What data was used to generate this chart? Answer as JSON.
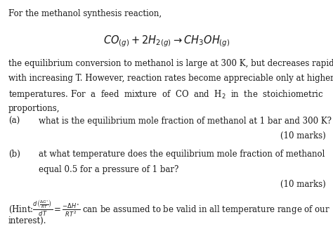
{
  "bg_color": "#ffffff",
  "text_color": "#1a1a1a",
  "fs": 8.5,
  "fs_eq": 10.5,
  "line1": "For the methanol synthesis reaction,",
  "eq": "$\\mathit{CO}_{(g)} + 2\\mathit{H}_{2(g)} \\rightarrow \\mathit{CH_3OH}_{(g)}$",
  "body": [
    "the equilibrium conversion to methanol is large at 300 K, but decreases rapidly",
    "with increasing T. However, reaction rates become appreciable only at higher",
    "temperatures. For  a  feed  mixture  of  CO  and  H$_2$  in  the  stoichiometric",
    "proportions,"
  ],
  "part_a_label": "(a)",
  "part_a_text": "what is the equilibrium mole fraction of methanol at 1 bar and 300 K?",
  "marks": "(10 marks)",
  "part_b_label": "(b)",
  "part_b_line1": "at what temperature does the equilibrium mole fraction of methanol",
  "part_b_line2": "equal 0.5 for a pressure of 1 bar?",
  "hint_prefix": "(Hint:",
  "hint_math": "$\\frac{d\\left(\\frac{\\Delta G^o}{RT}\\right)}{dT} = \\frac{-\\Delta H^o}{RT^2}$",
  "hint_suffix": " can be assumed to be valid in all temperature range of our",
  "hint_end": "interest)."
}
